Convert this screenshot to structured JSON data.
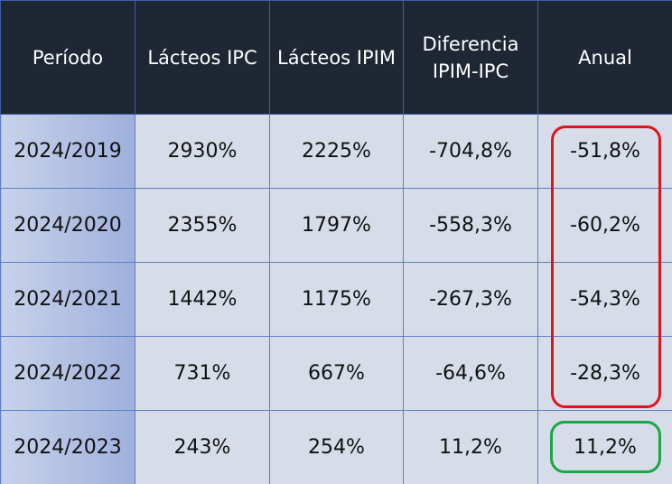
{
  "chart_data": {
    "type": "table",
    "columns": [
      "Período",
      "Lácteos IPC",
      "Lácteos IPIM",
      "Diferencia IPIM-IPC",
      "Anual"
    ],
    "rows": [
      {
        "periodo": "2024/2019",
        "ipc": "2930%",
        "ipim": "2225%",
        "diferencia": "-704,8%",
        "anual": "-51,8%"
      },
      {
        "periodo": "2024/2020",
        "ipc": "2355%",
        "ipim": "1797%",
        "diferencia": "-558,3%",
        "anual": "-60,2%"
      },
      {
        "periodo": "2024/2021",
        "ipc": "1442%",
        "ipim": "1175%",
        "diferencia": "-267,3%",
        "anual": "-54,3%"
      },
      {
        "periodo": "2024/2022",
        "ipc": "731%",
        "ipim": "667%",
        "diferencia": "-64,6%",
        "anual": "-28,3%"
      },
      {
        "periodo": "2024/2023",
        "ipc": "243%",
        "ipim": "254%",
        "diferencia": "11,2%",
        "anual": "11,2%"
      }
    ],
    "highlights": [
      {
        "column": "Anual",
        "rows": [
          0,
          1,
          2,
          3
        ],
        "color": "#e1141e"
      },
      {
        "column": "Anual",
        "rows": [
          4
        ],
        "color": "#1aa644"
      }
    ]
  },
  "colors": {
    "header_bg": "#1f2734",
    "cell_bg": "#d6dde8",
    "period_bg": "#9fb0dc",
    "grid": "#5a7fc7"
  }
}
